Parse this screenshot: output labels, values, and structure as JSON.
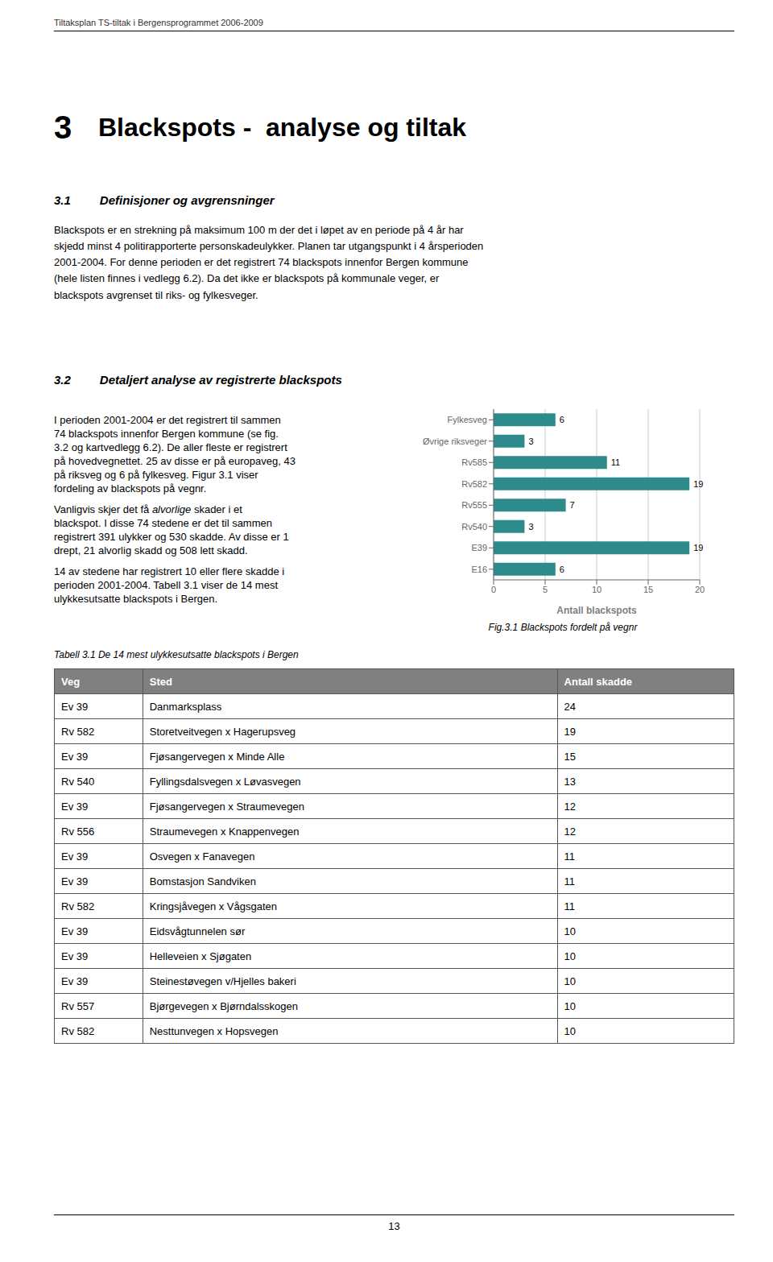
{
  "header_text": "Tiltaksplan TS-tiltak i Bergensprogrammet 2006-2009",
  "section_number": "3",
  "section_title": "Blackspots -  analyse og tiltak",
  "subsections": [
    {
      "number": "3.1",
      "title": "Definisjoner og avgrensninger",
      "text": "Blackspots er en strekning på maksimum 100 m der det i løpet av en periode på 4 år har\nskjedd minst 4 politirapporterte personskadeulykker. Planen tar utgangspunkt i 4 årsperioden\n2001-2004. For denne perioden er det registrert 74 blackspots innenfor Bergen kommune\n(hele listen finnes i vedlegg 6.2). Da det ikke er blackspots på kommunale veger, er\nblackspots avgrenset til riks- og fylkesveger."
    },
    {
      "number": "3.2",
      "title": "Detaljert analyse av registrerte blackspots"
    }
  ],
  "left_text": [
    [
      {
        "text": "I perioden 2001-2004 er det registrert til sammen"
      }
    ],
    [
      {
        "text": "74 blackspots innenfor Bergen kommune (se fig."
      }
    ],
    [
      {
        "text": "3.2 og kartvedlegg 6.2). De aller fleste er registrert"
      }
    ],
    [
      {
        "text": "på hovedvegnettet. 25 av disse er på europaveg, 43"
      }
    ],
    [
      {
        "text": "på riksveg og 6 på fylkesveg. Figur 3.1 viser"
      }
    ],
    [
      {
        "text": "fordeling av blackspots på vegnr."
      }
    ],
    [],
    [
      {
        "text": "Vanligvis skjer det få "
      },
      {
        "text": "alvorlige",
        "italic": true
      },
      {
        "text": " skader i et"
      }
    ],
    [
      {
        "text": "blackspot. I disse 74 stedene er det til sammen"
      }
    ],
    [
      {
        "text": "registrert 391 ulykker og 530 skadde. Av disse er 1"
      }
    ],
    [
      {
        "text": "drept, 21 alvorlig skadd og 508 lett skadd."
      }
    ],
    [],
    [
      {
        "text": "14 av stedene har registrert 10 eller flere skadde i"
      }
    ],
    [
      {
        "text": "perioden 2001-2004. Tabell 3.1 viser de 14 mest"
      }
    ],
    [
      {
        "text": "ulykkesutsatte blackspots i Bergen."
      }
    ]
  ],
  "chart_data": {
    "type": "bar",
    "orientation": "horizontal",
    "title": "Fig.3.1 Blackspots fordelt på vegnr",
    "categories": [
      "Fylkesveg",
      "Øvrige riksveger",
      "Rv585",
      "Rv582",
      "Rv555",
      "Rv540",
      "E39",
      "E16"
    ],
    "values": [
      6,
      3,
      11,
      19,
      7,
      3,
      19,
      6
    ],
    "color": "#2e8b8b",
    "xlabel": "Antall blackspots",
    "xlim": [
      0,
      20
    ],
    "xticks": [
      0,
      5,
      10,
      15,
      20
    ],
    "grid": true,
    "data_labels": true
  },
  "table": {
    "caption": "Tabell 3.1 De 14 mest ulykkesutsatte blackspots i Bergen",
    "headers": [
      "Veg",
      "Sted",
      "Antall skadde"
    ],
    "rows": [
      [
        "Ev 39",
        "Danmarksplass",
        "24"
      ],
      [
        "Rv 582",
        "Storetveitvegen x Hagerupsveg",
        "19"
      ],
      [
        "Ev 39",
        "Fjøsangervegen x Minde Alle",
        "15"
      ],
      [
        "Rv 540",
        "Fyllingsdalsvegen x Løvasvegen",
        "13"
      ],
      [
        "Ev 39",
        "Fjøsangervegen x Straumevegen",
        "12"
      ],
      [
        "Rv 556",
        "Straumevegen x Knappenvegen",
        "12"
      ],
      [
        "Ev 39",
        "Osvegen x Fanavegen",
        "11"
      ],
      [
        "Ev 39",
        "Bomstasjon Sandviken",
        "11"
      ],
      [
        "Rv 582",
        "Kringsjåvegen x Vågsgaten",
        "11"
      ],
      [
        "Ev 39",
        "Eidsvågtunnelen sør",
        "10"
      ],
      [
        "Ev 39",
        "Helleveien x Sjøgaten",
        "10"
      ],
      [
        "Ev 39",
        "Steinestøvegen v/Hjelles bakeri",
        "10"
      ],
      [
        "Rv 557",
        "Bjørgevegen x Bjørndalsskogen",
        "10"
      ],
      [
        "Rv 582",
        "Nesttunvegen x Hopsvegen",
        "10"
      ]
    ]
  },
  "page_number": "13"
}
